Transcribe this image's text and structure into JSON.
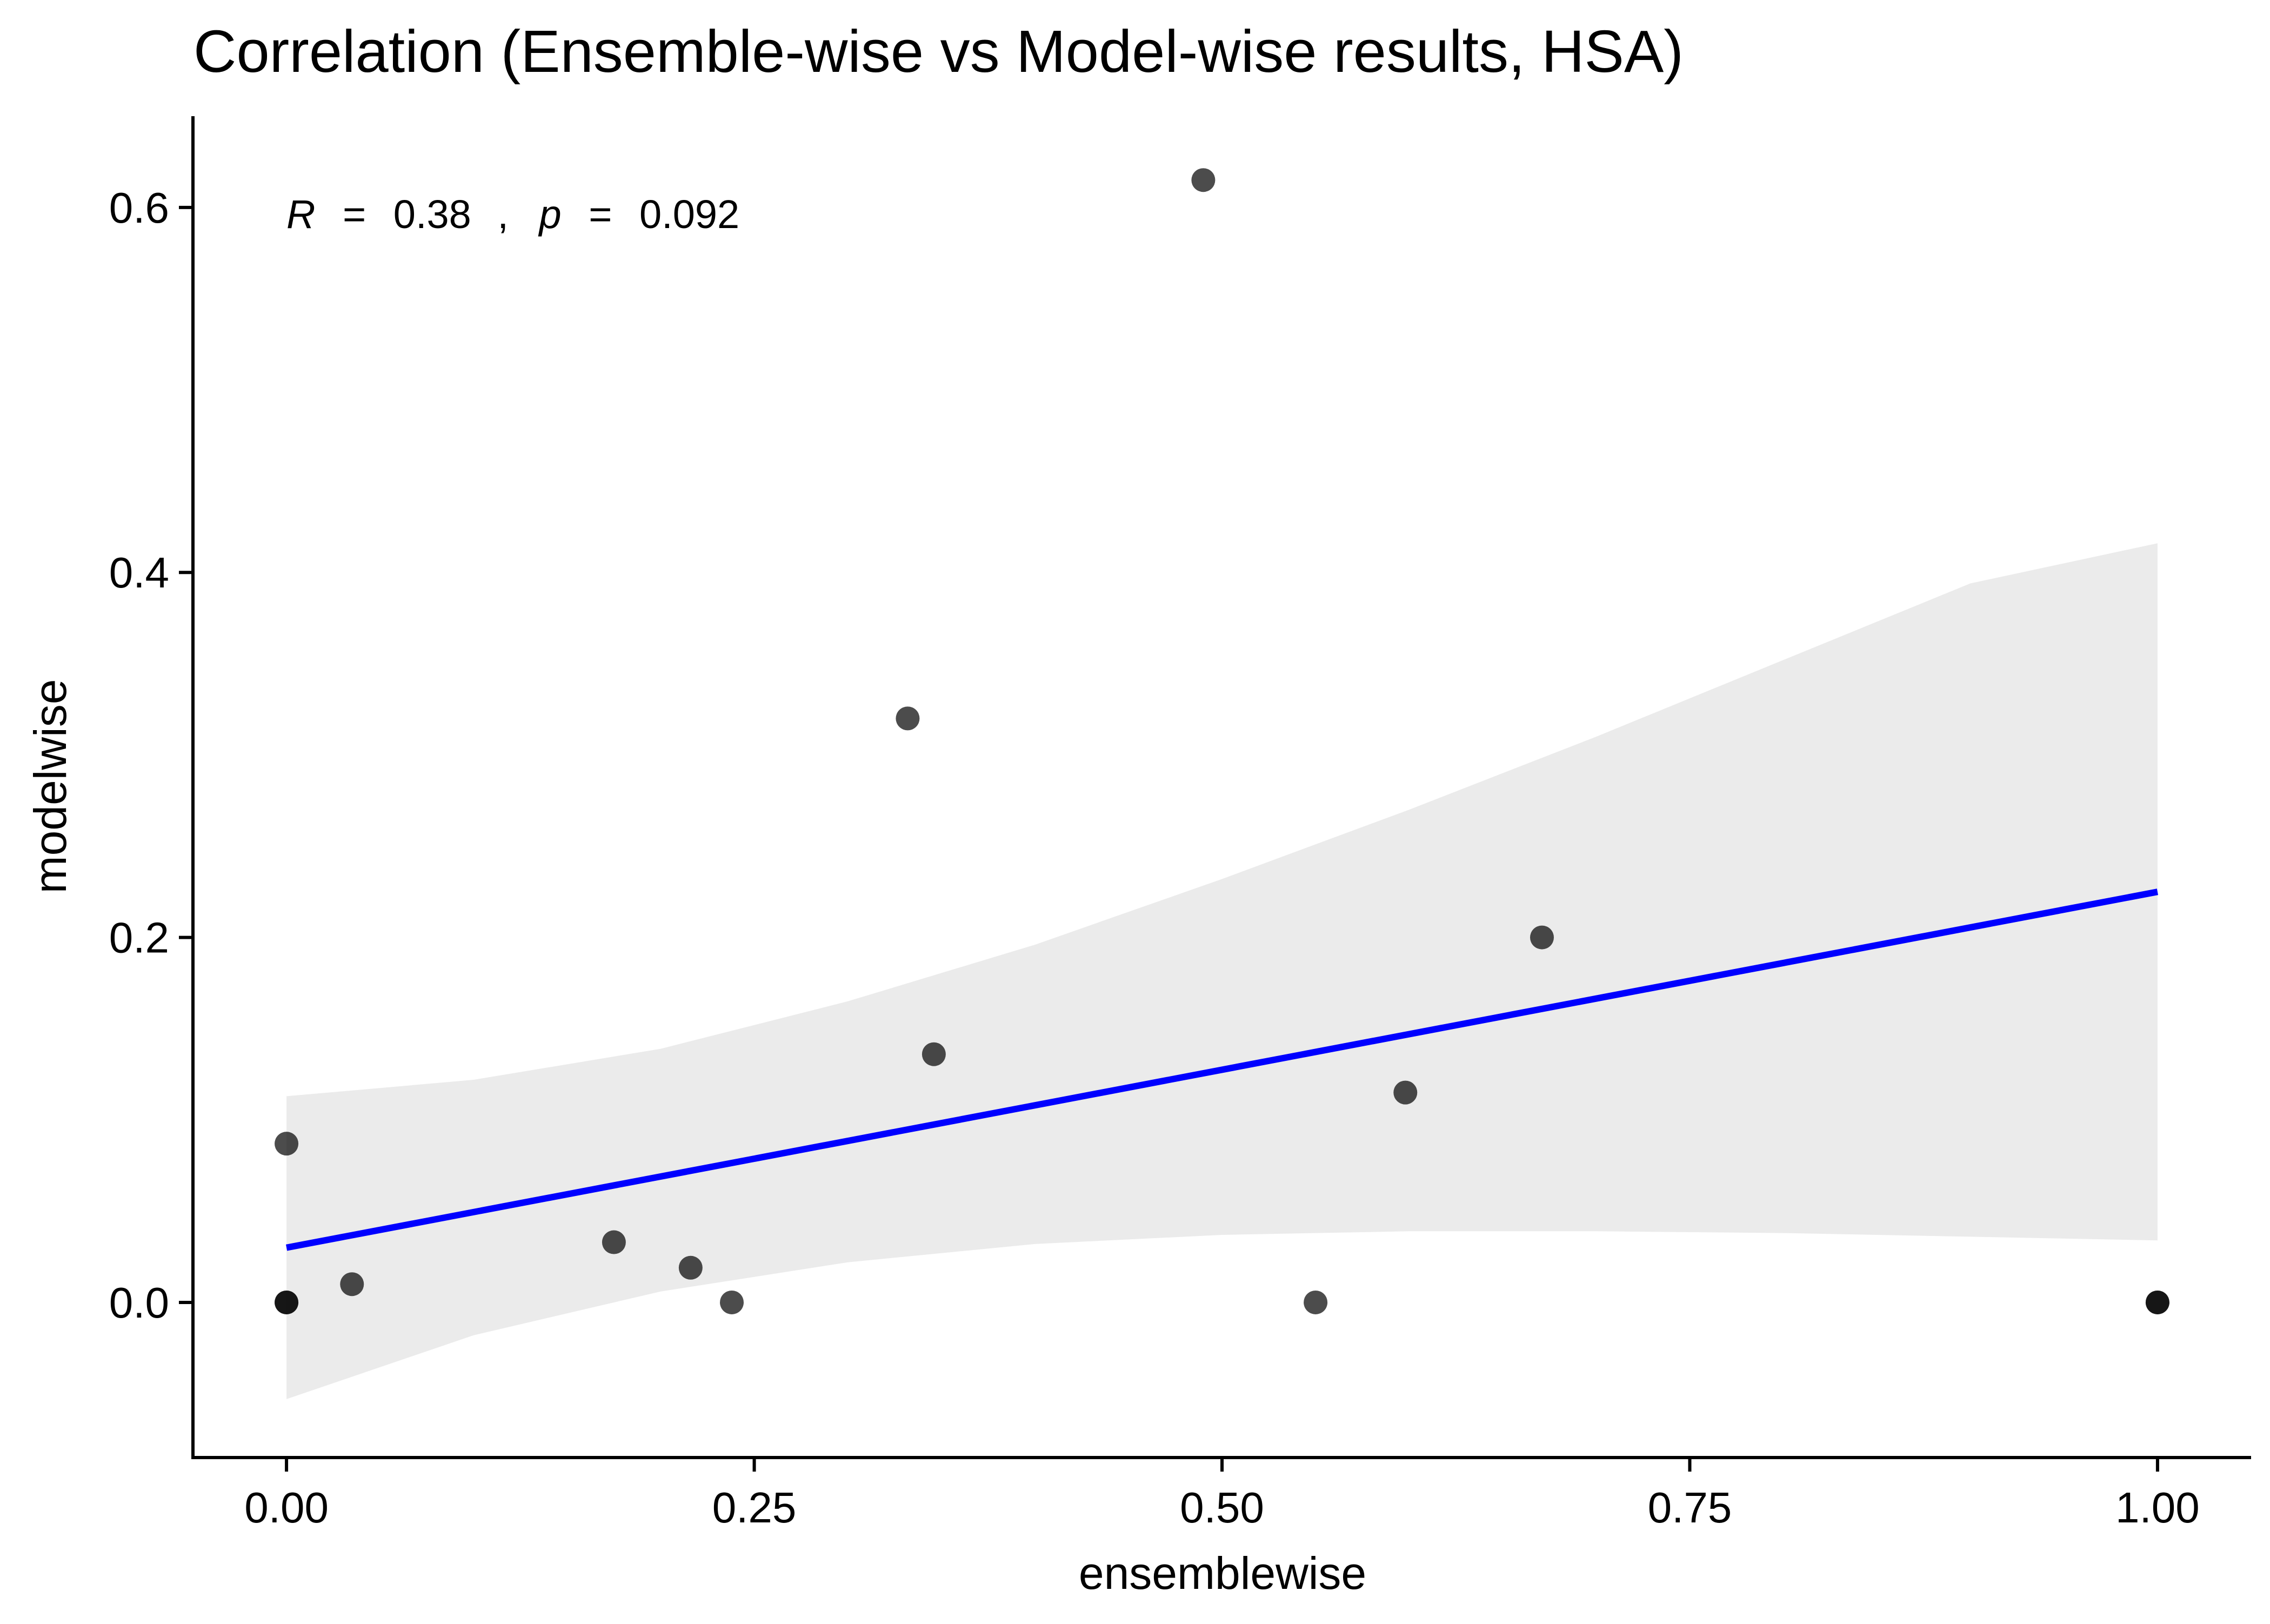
{
  "chart_data": {
    "type": "scatter",
    "title": "Correlation (Ensemble-wise vs Model-wise results, HSA)",
    "xlabel": "ensemblewise",
    "ylabel": "modelwise",
    "xlim": [
      -0.05,
      1.05
    ],
    "ylim": [
      -0.085,
      0.65
    ],
    "x_ticks": [
      0.0,
      0.25,
      0.5,
      0.75,
      1.0
    ],
    "x_tick_labels": [
      "0.00",
      "0.25",
      "0.50",
      "0.75",
      "1.00"
    ],
    "y_ticks": [
      0.0,
      0.2,
      0.4,
      0.6
    ],
    "y_tick_labels": [
      "0.0",
      "0.2",
      "0.4",
      "0.6"
    ],
    "grid": false,
    "legend": "none",
    "points": [
      {
        "x": 0.0,
        "y": 0.087
      },
      {
        "x": 0.0,
        "y": 0.0
      },
      {
        "x": 0.0,
        "y": 0.0
      },
      {
        "x": 0.035,
        "y": 0.01
      },
      {
        "x": 0.175,
        "y": 0.033
      },
      {
        "x": 0.216,
        "y": 0.019
      },
      {
        "x": 0.238,
        "y": 0.0
      },
      {
        "x": 0.332,
        "y": 0.32
      },
      {
        "x": 0.346,
        "y": 0.136
      },
      {
        "x": 0.49,
        "y": 0.615
      },
      {
        "x": 0.55,
        "y": 0.0
      },
      {
        "x": 0.598,
        "y": 0.115
      },
      {
        "x": 0.671,
        "y": 0.2
      },
      {
        "x": 1.0,
        "y": 0.0
      },
      {
        "x": 1.0,
        "y": 0.0
      }
    ],
    "regression": {
      "x": [
        0.0,
        1.0
      ],
      "y": [
        0.03,
        0.225
      ]
    },
    "confidence_band": {
      "x": [
        0.0,
        0.1,
        0.2,
        0.3,
        0.4,
        0.5,
        0.6,
        0.7,
        0.8,
        0.9,
        1.0
      ],
      "upper": [
        0.113,
        0.122,
        0.139,
        0.165,
        0.196,
        0.232,
        0.27,
        0.31,
        0.352,
        0.394,
        0.416
      ],
      "lower": [
        -0.053,
        -0.018,
        0.006,
        0.022,
        0.032,
        0.037,
        0.039,
        0.039,
        0.038,
        0.036,
        0.034
      ]
    },
    "annotation": {
      "r_symbol": "R",
      "eq1": "=",
      "r_value": "0.38",
      "sep": ",",
      "p_symbol": "p",
      "eq2": "=",
      "p_value": "0.092"
    },
    "colors": {
      "line": "#0000ff",
      "band": "#ebebeb",
      "point": "#000000",
      "axis": "#000000",
      "background": "#ffffff"
    }
  }
}
